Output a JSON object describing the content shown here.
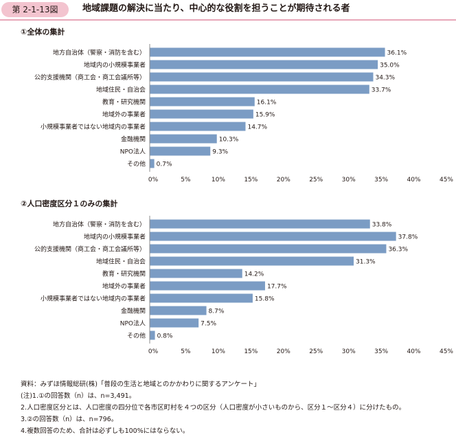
{
  "header": {
    "figure_number": "第 2-1-13図",
    "title": "地域課題の解決に当たり、中心的な役割を担うことが期待される者"
  },
  "colors": {
    "bar": "#7b9cc4",
    "badge": "#f3c4cf",
    "rule": "#e8a7b8",
    "text": "#231815"
  },
  "chart_data": [
    {
      "type": "bar",
      "orientation": "horizontal",
      "title": "①全体の集計",
      "categories": [
        "地方自治体（警察・消防を含む）",
        "地域内の小規模事業者",
        "公的支援機関（商工会・商工会議所等）",
        "地域住民・自治会",
        "教育・研究機関",
        "地域外の事業者",
        "小規模事業者ではない地域内の事業者",
        "金融機関",
        "NPO法人",
        "その他"
      ],
      "values": [
        36.1,
        35.0,
        34.3,
        33.7,
        16.1,
        15.9,
        14.7,
        10.3,
        9.3,
        0.7
      ],
      "value_labels": [
        "36.1%",
        "35.0%",
        "34.3%",
        "33.7%",
        "16.1%",
        "15.9%",
        "14.7%",
        "10.3%",
        "9.3%",
        "0.7%"
      ],
      "xlim": [
        0,
        45
      ],
      "xticks": [
        "0%",
        "5%",
        "10%",
        "15%",
        "20%",
        "25%",
        "30%",
        "35%",
        "40%",
        "45%"
      ],
      "grid": false,
      "legend": false
    },
    {
      "type": "bar",
      "orientation": "horizontal",
      "title": "②人口密度区分１のみの集計",
      "categories": [
        "地方自治体（警察・消防を含む）",
        "地域内の小規模事業者",
        "公的支援機関（商工会・商工会議所等）",
        "地域住民・自治会",
        "教育・研究機関",
        "地域外の事業者",
        "小規模事業者ではない地域内の事業者",
        "金融機関",
        "NPO法人",
        "その他"
      ],
      "values": [
        33.8,
        37.8,
        36.3,
        31.3,
        14.2,
        17.7,
        15.8,
        8.7,
        7.5,
        0.8
      ],
      "value_labels": [
        "33.8%",
        "37.8%",
        "36.3%",
        "31.3%",
        "14.2%",
        "17.7%",
        "15.8%",
        "8.7%",
        "7.5%",
        "0.8%"
      ],
      "xlim": [
        0,
        45
      ],
      "xticks": [
        "0%",
        "5%",
        "10%",
        "15%",
        "20%",
        "25%",
        "30%",
        "35%",
        "40%",
        "45%"
      ],
      "grid": false,
      "legend": false
    }
  ],
  "notes": [
    "資料：みずほ情報総研(株)「普段の生活と地域とのかかわりに関するアンケート」",
    "(注)1.①の回答数（n）は、n=3,491。",
    "2.人口密度区分とは、人口密度の四分位で各市区町村を４つの区分（人口密度が小さいものから、区分１～区分４）に分けたもの。",
    "3.②の回答数（n）は、n=796。",
    "4.複数回答のため、合計は必ずしも100%にはならない。"
  ]
}
